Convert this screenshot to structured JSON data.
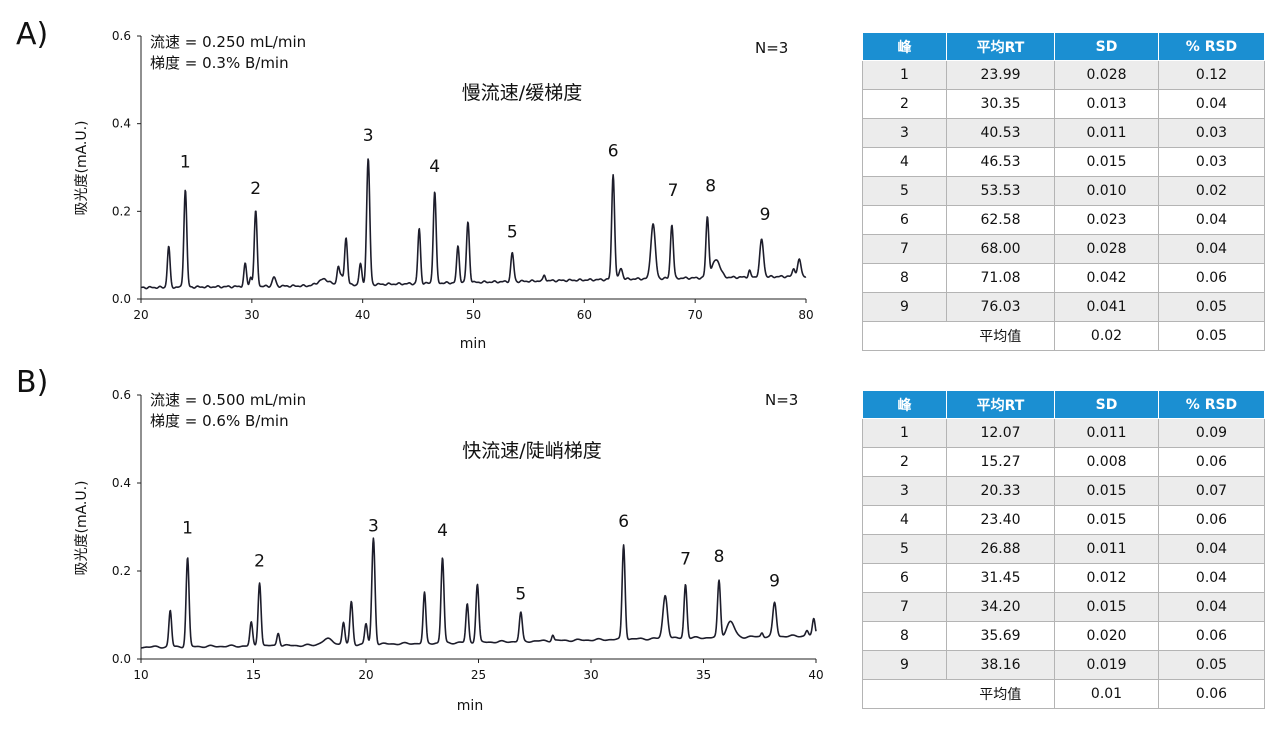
{
  "panels": [
    {
      "letter": "A)",
      "flow_line": "流速 = 0.250 mL/min",
      "gradient_line": "梯度 = 0.3% B/min",
      "n_label": "N=3",
      "chart_title": "慢流速/缓梯度",
      "table": {
        "headers": [
          "峰",
          "平均RT",
          "SD",
          "% RSD"
        ],
        "rows": [
          [
            "1",
            "23.99",
            "0.028",
            "0.12"
          ],
          [
            "2",
            "30.35",
            "0.013",
            "0.04"
          ],
          [
            "3",
            "40.53",
            "0.011",
            "0.03"
          ],
          [
            "4",
            "46.53",
            "0.015",
            "0.03"
          ],
          [
            "5",
            "53.53",
            "0.010",
            "0.02"
          ],
          [
            "6",
            "62.58",
            "0.023",
            "0.04"
          ],
          [
            "7",
            "68.00",
            "0.028",
            "0.04"
          ],
          [
            "8",
            "71.08",
            "0.042",
            "0.06"
          ],
          [
            "9",
            "76.03",
            "0.041",
            "0.05"
          ]
        ],
        "average": {
          "label": "平均值",
          "sd": "0.02",
          "rsd": "0.05"
        }
      }
    },
    {
      "letter": "B)",
      "flow_line": "流速 = 0.500 mL/min",
      "gradient_line": "梯度 = 0.6% B/min",
      "n_label": "N=3",
      "chart_title": "快流速/陡峭梯度",
      "table": {
        "headers": [
          "峰",
          "平均RT",
          "SD",
          "% RSD"
        ],
        "rows": [
          [
            "1",
            "12.07",
            "0.011",
            "0.09"
          ],
          [
            "2",
            "15.27",
            "0.008",
            "0.06"
          ],
          [
            "3",
            "20.33",
            "0.015",
            "0.07"
          ],
          [
            "4",
            "23.40",
            "0.015",
            "0.06"
          ],
          [
            "5",
            "26.88",
            "0.011",
            "0.04"
          ],
          [
            "6",
            "31.45",
            "0.012",
            "0.04"
          ],
          [
            "7",
            "34.20",
            "0.015",
            "0.04"
          ],
          [
            "8",
            "35.69",
            "0.020",
            "0.06"
          ],
          [
            "9",
            "38.16",
            "0.019",
            "0.05"
          ]
        ],
        "average": {
          "label": "平均值",
          "sd": "0.01",
          "rsd": "0.06"
        }
      }
    }
  ],
  "colors": {
    "header_bg": "#1b8fd2",
    "trace": "#1d1d2b",
    "row_shade": "#ececec"
  },
  "chart_data": [
    {
      "type": "line",
      "xlabel": "min",
      "ylabel": "吸光度(mA.U.)",
      "xlim": [
        20,
        80
      ],
      "ylim": [
        0,
        0.6
      ],
      "xticks": [
        20,
        30,
        40,
        50,
        60,
        70,
        80
      ],
      "yticks": [
        0.0,
        0.2,
        0.4,
        0.6
      ],
      "tick_labels_x": [
        "20",
        "30",
        "40",
        "50",
        "60",
        "70",
        "80"
      ],
      "tick_labels_y": [
        "0.0",
        "0.2",
        "0.4",
        "0.6"
      ],
      "baseline": [
        [
          20,
          0.026
        ],
        [
          35,
          0.03
        ],
        [
          50,
          0.038
        ],
        [
          65,
          0.046
        ],
        [
          80,
          0.052
        ]
      ],
      "peaks": [
        [
          22.5,
          0.12,
          0.12
        ],
        [
          24.0,
          0.25,
          0.13
        ],
        [
          29.4,
          0.08,
          0.12
        ],
        [
          29.9,
          0.05,
          0.1
        ],
        [
          30.35,
          0.2,
          0.13
        ],
        [
          32.0,
          0.05,
          0.15
        ],
        [
          36.5,
          0.045,
          0.5
        ],
        [
          37.8,
          0.075,
          0.12
        ],
        [
          38.1,
          0.05,
          0.12
        ],
        [
          38.5,
          0.14,
          0.13
        ],
        [
          39.8,
          0.08,
          0.12
        ],
        [
          40.5,
          0.32,
          0.14
        ],
        [
          45.1,
          0.16,
          0.12
        ],
        [
          46.5,
          0.245,
          0.13
        ],
        [
          48.6,
          0.12,
          0.12
        ],
        [
          49.5,
          0.175,
          0.13
        ],
        [
          53.5,
          0.105,
          0.13
        ],
        [
          56.4,
          0.055,
          0.1
        ],
        [
          62.6,
          0.285,
          0.13
        ],
        [
          63.3,
          0.07,
          0.15
        ],
        [
          66.2,
          0.172,
          0.2
        ],
        [
          67.9,
          0.17,
          0.13
        ],
        [
          71.1,
          0.185,
          0.13
        ],
        [
          71.9,
          0.09,
          0.35
        ],
        [
          74.9,
          0.065,
          0.1
        ],
        [
          76.0,
          0.135,
          0.17
        ],
        [
          78.9,
          0.07,
          0.12
        ],
        [
          79.4,
          0.09,
          0.15
        ]
      ],
      "peak_labels": [
        {
          "text": "1",
          "x": 24.0,
          "y": 0.3
        },
        {
          "text": "2",
          "x": 30.35,
          "y": 0.24
        },
        {
          "text": "3",
          "x": 40.5,
          "y": 0.36
        },
        {
          "text": "4",
          "x": 46.5,
          "y": 0.29
        },
        {
          "text": "5",
          "x": 53.5,
          "y": 0.14
        },
        {
          "text": "6",
          "x": 62.6,
          "y": 0.325
        },
        {
          "text": "7",
          "x": 68.0,
          "y": 0.235
        },
        {
          "text": "8",
          "x": 71.4,
          "y": 0.245
        },
        {
          "text": "9",
          "x": 76.3,
          "y": 0.18
        }
      ]
    },
    {
      "type": "line",
      "xlabel": "min",
      "ylabel": "吸光度(mA.U.)",
      "xlim": [
        10,
        40
      ],
      "ylim": [
        0,
        0.6
      ],
      "xticks": [
        10,
        15,
        20,
        25,
        30,
        35,
        40
      ],
      "yticks": [
        0.0,
        0.2,
        0.4,
        0.6
      ],
      "tick_labels_x": [
        "10",
        "15",
        "20",
        "25",
        "30",
        "35",
        "40"
      ],
      "tick_labels_y": [
        "0.0",
        "0.2",
        "0.4",
        "0.6"
      ],
      "baseline": [
        [
          10,
          0.027
        ],
        [
          17.5,
          0.031
        ],
        [
          25,
          0.038
        ],
        [
          32.5,
          0.046
        ],
        [
          40,
          0.053
        ]
      ],
      "peaks": [
        [
          11.3,
          0.11,
          0.06
        ],
        [
          12.07,
          0.23,
          0.065
        ],
        [
          14.9,
          0.083,
          0.06
        ],
        [
          15.27,
          0.175,
          0.065
        ],
        [
          16.1,
          0.06,
          0.06
        ],
        [
          18.3,
          0.045,
          0.25
        ],
        [
          19.0,
          0.083,
          0.06
        ],
        [
          19.35,
          0.13,
          0.065
        ],
        [
          20.0,
          0.08,
          0.06
        ],
        [
          20.33,
          0.275,
          0.07
        ],
        [
          22.6,
          0.15,
          0.06
        ],
        [
          23.4,
          0.23,
          0.065
        ],
        [
          24.5,
          0.125,
          0.06
        ],
        [
          24.95,
          0.17,
          0.065
        ],
        [
          26.88,
          0.105,
          0.065
        ],
        [
          28.3,
          0.055,
          0.05
        ],
        [
          31.45,
          0.26,
          0.065
        ],
        [
          33.3,
          0.145,
          0.1
        ],
        [
          34.2,
          0.17,
          0.065
        ],
        [
          35.69,
          0.178,
          0.065
        ],
        [
          36.2,
          0.085,
          0.17
        ],
        [
          37.6,
          0.06,
          0.05
        ],
        [
          38.16,
          0.128,
          0.08
        ],
        [
          39.6,
          0.065,
          0.06
        ],
        [
          39.9,
          0.09,
          0.06
        ]
      ],
      "peak_labels": [
        {
          "text": "1",
          "x": 12.07,
          "y": 0.285
        },
        {
          "text": "2",
          "x": 15.27,
          "y": 0.21
        },
        {
          "text": "3",
          "x": 20.33,
          "y": 0.29
        },
        {
          "text": "4",
          "x": 23.4,
          "y": 0.28
        },
        {
          "text": "5",
          "x": 26.88,
          "y": 0.135
        },
        {
          "text": "6",
          "x": 31.45,
          "y": 0.3
        },
        {
          "text": "7",
          "x": 34.2,
          "y": 0.215
        },
        {
          "text": "8",
          "x": 35.69,
          "y": 0.22
        },
        {
          "text": "9",
          "x": 38.16,
          "y": 0.165
        }
      ]
    }
  ]
}
